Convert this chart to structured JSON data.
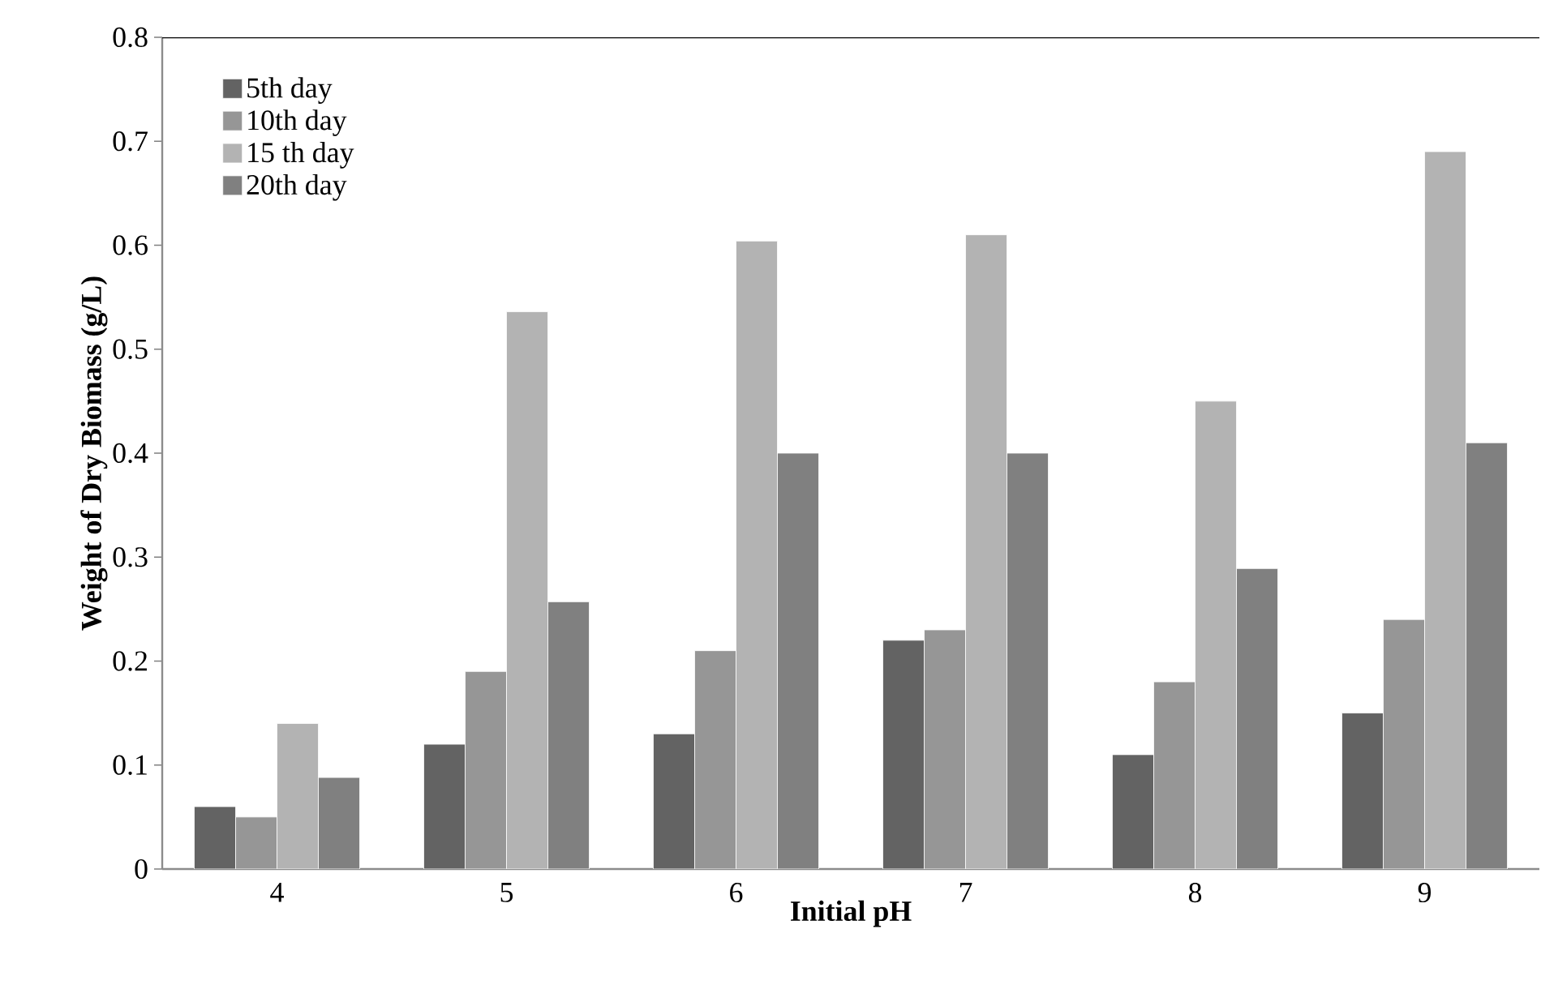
{
  "chart_data": {
    "type": "bar",
    "xlabel": "Initial pH",
    "ylabel": "Weight of Dry Biomass (g/L)",
    "categories": [
      "4",
      "5",
      "6",
      "7",
      "8",
      "9"
    ],
    "series": [
      {
        "name": "5th day",
        "color": "#636363",
        "values": [
          0.06,
          0.12,
          0.13,
          0.22,
          0.11,
          0.15
        ]
      },
      {
        "name": "10th day",
        "color": "#969696",
        "values": [
          0.05,
          0.19,
          0.21,
          0.23,
          0.18,
          0.24
        ]
      },
      {
        "name": "15 th day",
        "color": "#b3b3b3",
        "values": [
          0.14,
          0.536,
          0.604,
          0.61,
          0.45,
          0.69
        ]
      },
      {
        "name": "20th day",
        "color": "#808080",
        "values": [
          0.088,
          0.257,
          0.4,
          0.4,
          0.289,
          0.41
        ]
      }
    ],
    "ylim": [
      0,
      0.8
    ],
    "yticks": [
      0,
      0.1,
      0.2,
      0.3,
      0.4,
      0.5,
      0.6,
      0.7,
      0.8
    ],
    "grid": false,
    "legend": "top left"
  }
}
